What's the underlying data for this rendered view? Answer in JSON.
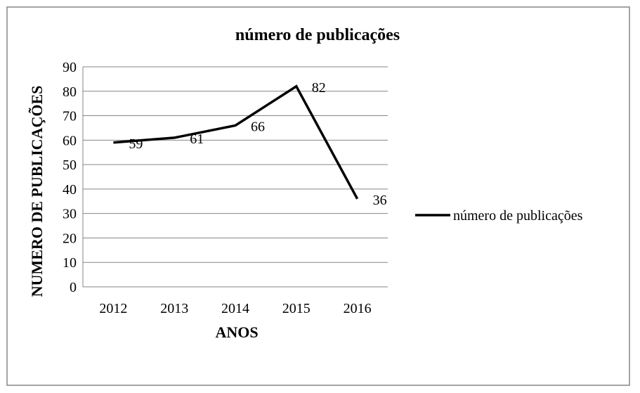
{
  "chart_data": {
    "type": "line",
    "title": "número de publicações",
    "xlabel": "ANOS",
    "ylabel": "NUMERO DE PUBLICAÇÕES",
    "categories": [
      "2012",
      "2013",
      "2014",
      "2015",
      "2016"
    ],
    "series": [
      {
        "name": "número de publicações",
        "values": [
          59,
          61,
          66,
          82,
          36
        ]
      }
    ],
    "data_labels": [
      "59",
      "61",
      "66",
      "82",
      "36"
    ],
    "ylim": [
      0,
      90
    ],
    "yticks": [
      0,
      10,
      20,
      30,
      40,
      50,
      60,
      70,
      80,
      90
    ],
    "ytick_labels": [
      "0",
      "10",
      "20",
      "30",
      "40",
      "50",
      "60",
      "70",
      "80",
      "90"
    ],
    "grid": "horizontal",
    "legend_position": "right",
    "line_color": "#000000",
    "grid_color": "#868686",
    "border_color": "#868686"
  }
}
